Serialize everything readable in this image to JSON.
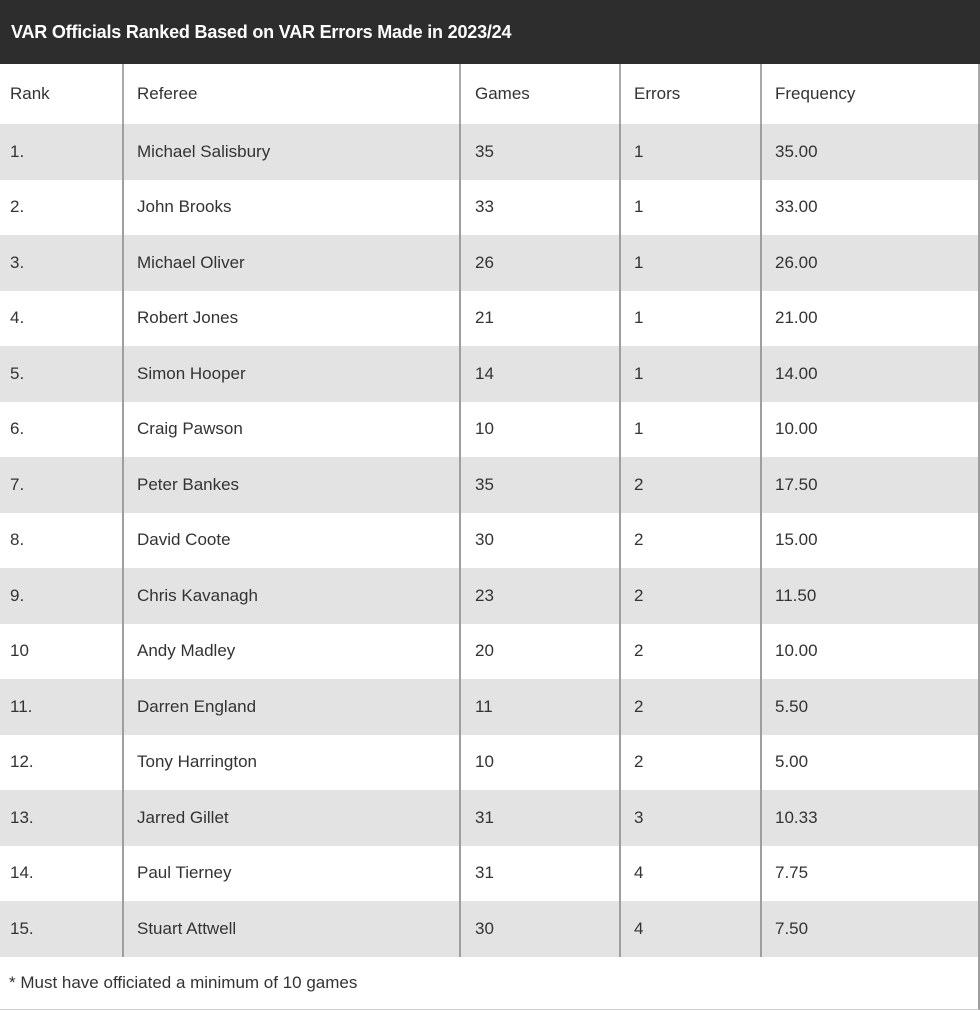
{
  "title_bar": {
    "title": "VAR Officials Ranked Based on VAR Errors Made in 2023/24",
    "background_color": "#2d2d2d",
    "text_color": "#ffffff"
  },
  "table": {
    "columns": [
      "Rank",
      "Referee",
      "Games",
      "Errors",
      "Frequency"
    ],
    "column_keys": [
      "rank",
      "referee",
      "games",
      "errors",
      "frequency"
    ],
    "stripe_color": "#e3e3e3",
    "divider_color": "#9e9e9e",
    "rows": [
      {
        "rank": "1.",
        "referee": "Michael Salisbury",
        "games": "35",
        "errors": "1",
        "frequency": "35.00"
      },
      {
        "rank": "2.",
        "referee": "John Brooks",
        "games": "33",
        "errors": "1",
        "frequency": "33.00"
      },
      {
        "rank": "3.",
        "referee": "Michael Oliver",
        "games": "26",
        "errors": "1",
        "frequency": "26.00"
      },
      {
        "rank": "4.",
        "referee": "Robert Jones",
        "games": "21",
        "errors": "1",
        "frequency": "21.00"
      },
      {
        "rank": "5.",
        "referee": "Simon Hooper",
        "games": "14",
        "errors": "1",
        "frequency": "14.00"
      },
      {
        "rank": "6.",
        "referee": "Craig Pawson",
        "games": "10",
        "errors": "1",
        "frequency": "10.00"
      },
      {
        "rank": "7.",
        "referee": "Peter Bankes",
        "games": "35",
        "errors": "2",
        "frequency": "17.50"
      },
      {
        "rank": "8.",
        "referee": "David Coote",
        "games": "30",
        "errors": "2",
        "frequency": "15.00"
      },
      {
        "rank": "9.",
        "referee": "Chris Kavanagh",
        "games": "23",
        "errors": "2",
        "frequency": "11.50"
      },
      {
        "rank": "10",
        "referee": "Andy Madley",
        "games": "20",
        "errors": "2",
        "frequency": "10.00"
      },
      {
        "rank": "11.",
        "referee": "Darren England",
        "games": "11",
        "errors": "2",
        "frequency": "5.50"
      },
      {
        "rank": "12.",
        "referee": "Tony Harrington",
        "games": "10",
        "errors": "2",
        "frequency": "5.00"
      },
      {
        "rank": "13.",
        "referee": "Jarred Gillet",
        "games": "31",
        "errors": "3",
        "frequency": "10.33"
      },
      {
        "rank": "14.",
        "referee": "Paul Tierney",
        "games": "31",
        "errors": "4",
        "frequency": "7.75"
      },
      {
        "rank": "15.",
        "referee": "Stuart Attwell",
        "games": "30",
        "errors": "4",
        "frequency": "7.50"
      }
    ]
  },
  "footnote": "* Must have officiated a minimum of 10 games",
  "chart_data": {
    "type": "table",
    "title": "VAR Officials Ranked Based on VAR Errors Made in 2023/24",
    "columns": [
      "Rank",
      "Referee",
      "Games",
      "Errors",
      "Frequency"
    ],
    "rows": [
      [
        1,
        "Michael Salisbury",
        35,
        1,
        35.0
      ],
      [
        2,
        "John Brooks",
        33,
        1,
        33.0
      ],
      [
        3,
        "Michael Oliver",
        26,
        1,
        26.0
      ],
      [
        4,
        "Robert Jones",
        21,
        1,
        21.0
      ],
      [
        5,
        "Simon Hooper",
        14,
        1,
        14.0
      ],
      [
        6,
        "Craig Pawson",
        10,
        1,
        10.0
      ],
      [
        7,
        "Peter Bankes",
        35,
        2,
        17.5
      ],
      [
        8,
        "David Coote",
        30,
        2,
        15.0
      ],
      [
        9,
        "Chris Kavanagh",
        23,
        2,
        11.5
      ],
      [
        10,
        "Andy Madley",
        20,
        2,
        10.0
      ],
      [
        11,
        "Darren England",
        11,
        2,
        5.5
      ],
      [
        12,
        "Tony Harrington",
        10,
        2,
        5.0
      ],
      [
        13,
        "Jarred Gillet",
        31,
        3,
        10.33
      ],
      [
        14,
        "Paul Tierney",
        31,
        4,
        7.75
      ],
      [
        15,
        "Stuart Attwell",
        30,
        4,
        7.5
      ]
    ],
    "footnote": "* Must have officiated a minimum of 10 games",
    "layout": {
      "striped": true,
      "stripe_on": "odd-rows",
      "header_position": "top"
    }
  }
}
